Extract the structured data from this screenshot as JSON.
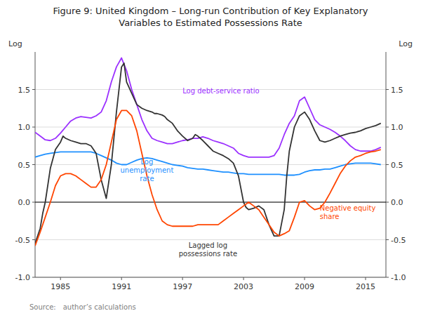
{
  "chart_data": {
    "type": "line",
    "title": "Figure 9: United Kingdom – Long-run Contribution of Key Explanatory\nVariables to Estimated Possessions Rate",
    "source": "Source: author’s calculations",
    "ylabel": "Log",
    "y2label": "Log",
    "xlim": [
      1982.5,
      2017.0
    ],
    "xticks": [
      1985,
      1991,
      1997,
      2003,
      2009,
      2015
    ],
    "ylim": [
      -1.0,
      2.0
    ],
    "yticks": [
      {
        "value": -1.0,
        "label": "-1.0"
      },
      -0.5,
      {
        "value": 0.0,
        "label": "0.0"
      },
      0.5,
      {
        "value": 1.0,
        "label": "1.0"
      },
      1.5
    ],
    "y2lim": [
      -1.0,
      2.0
    ],
    "y2ticks": [
      {
        "value": -1.0,
        "label": "-1.0"
      },
      -0.5,
      {
        "value": 0.0,
        "label": "0.0"
      },
      0.5,
      {
        "value": 1.0,
        "label": "1.0"
      },
      1.5
    ],
    "grid": true,
    "series": [
      {
        "color": "#9B30FF",
        "x": [
          1982.5,
          1983,
          1983.5,
          1984,
          1984.5,
          1985,
          1985.5,
          1986,
          1986.5,
          1987,
          1987.5,
          1988,
          1988.5,
          1989,
          1989.5,
          1990,
          1990.5,
          1991,
          1991.5,
          1992,
          1992.5,
          1993,
          1993.5,
          1994,
          1994.5,
          1995,
          1995.5,
          1996,
          1996.5,
          1997,
          1997.5,
          1998,
          1998.5,
          1999,
          1999.5,
          2000,
          2000.5,
          2001,
          2001.5,
          2002,
          2002.5,
          2003,
          2003.5,
          2004,
          2004.5,
          2005,
          2005.5,
          2006,
          2006.5,
          2007,
          2007.5,
          2008,
          2008.5,
          2009,
          2009.5,
          2010,
          2010.5,
          2011,
          2011.5,
          2012,
          2012.5,
          2013,
          2013.5,
          2014,
          2014.5,
          2015,
          2015.5,
          2016,
          2016.5
        ],
        "values": [
          0.93,
          0.88,
          0.83,
          0.82,
          0.85,
          0.92,
          1.0,
          1.08,
          1.12,
          1.14,
          1.13,
          1.12,
          1.15,
          1.2,
          1.35,
          1.6,
          1.8,
          1.92,
          1.75,
          1.5,
          1.3,
          1.1,
          0.95,
          0.85,
          0.82,
          0.8,
          0.78,
          0.78,
          0.8,
          0.82,
          0.83,
          0.85,
          0.85,
          0.87,
          0.85,
          0.82,
          0.8,
          0.78,
          0.75,
          0.72,
          0.65,
          0.62,
          0.6,
          0.6,
          0.6,
          0.6,
          0.6,
          0.62,
          0.72,
          0.9,
          1.05,
          1.15,
          1.35,
          1.4,
          1.25,
          1.1,
          1.03,
          1.0,
          0.97,
          0.93,
          0.88,
          0.82,
          0.75,
          0.7,
          0.68,
          0.68,
          0.68,
          0.7,
          0.73
        ]
      },
      {
        "color": "#1E90FF",
        "x": [
          1982.5,
          1983,
          1983.5,
          1984,
          1984.5,
          1985,
          1985.5,
          1986,
          1986.5,
          1987,
          1987.5,
          1988,
          1988.5,
          1989,
          1989.5,
          1990,
          1990.5,
          1991,
          1991.5,
          1992,
          1992.5,
          1993,
          1993.5,
          1994,
          1994.5,
          1995,
          1995.5,
          1996,
          1996.5,
          1997,
          1997.5,
          1998,
          1998.5,
          1999,
          1999.5,
          2000,
          2000.5,
          2001,
          2001.5,
          2002,
          2002.5,
          2003,
          2003.5,
          2004,
          2004.5,
          2005,
          2005.5,
          2006,
          2006.5,
          2007,
          2007.5,
          2008,
          2008.5,
          2009,
          2009.5,
          2010,
          2010.5,
          2011,
          2011.5,
          2012,
          2012.5,
          2013,
          2013.5,
          2014,
          2014.5,
          2015,
          2015.5,
          2016,
          2016.5
        ],
        "values": [
          0.6,
          0.62,
          0.64,
          0.65,
          0.66,
          0.67,
          0.67,
          0.67,
          0.67,
          0.67,
          0.67,
          0.67,
          0.65,
          0.62,
          0.59,
          0.56,
          0.52,
          0.5,
          0.5,
          0.53,
          0.56,
          0.58,
          0.59,
          0.58,
          0.56,
          0.54,
          0.52,
          0.5,
          0.49,
          0.48,
          0.46,
          0.45,
          0.44,
          0.44,
          0.43,
          0.42,
          0.41,
          0.4,
          0.4,
          0.39,
          0.38,
          0.38,
          0.37,
          0.37,
          0.37,
          0.37,
          0.37,
          0.37,
          0.37,
          0.36,
          0.36,
          0.36,
          0.37,
          0.4,
          0.42,
          0.43,
          0.43,
          0.44,
          0.44,
          0.46,
          0.48,
          0.5,
          0.51,
          0.52,
          0.52,
          0.52,
          0.52,
          0.51,
          0.5
        ]
      },
      {
        "color": "#333333",
        "x": [
          1982.5,
          1983,
          1983.25,
          1983.5,
          1984,
          1984.5,
          1985,
          1985.25,
          1985.5,
          1986,
          1986.5,
          1987,
          1987.5,
          1988,
          1988.25,
          1988.5,
          1989,
          1989.5,
          1990,
          1990.5,
          1991,
          1991.25,
          1991.5,
          1992,
          1992.5,
          1993,
          1993.5,
          1994,
          1994.25,
          1994.5,
          1995,
          1995.25,
          1995.5,
          1996,
          1996.5,
          1997,
          1997.5,
          1998,
          1998.25,
          1998.5,
          1999,
          1999.5,
          2000,
          2000.5,
          2001,
          2001.5,
          2002,
          2002.5,
          2003,
          2003.25,
          2003.5,
          2004,
          2004.5,
          2005,
          2005.5,
          2006,
          2006.5,
          2007,
          2007.25,
          2007.5,
          2008,
          2008.5,
          2009,
          2009.5,
          2010,
          2010.5,
          2011,
          2011.5,
          2012,
          2012.5,
          2013,
          2013.5,
          2014,
          2014.5,
          2015,
          2015.5,
          2016,
          2016.5
        ],
        "values": [
          -0.55,
          -0.35,
          -0.15,
          0.0,
          0.45,
          0.7,
          0.8,
          0.88,
          0.85,
          0.82,
          0.8,
          0.78,
          0.78,
          0.75,
          0.7,
          0.65,
          0.3,
          0.05,
          0.5,
          1.2,
          1.8,
          1.85,
          1.6,
          1.45,
          1.3,
          1.25,
          1.22,
          1.2,
          1.18,
          1.18,
          1.16,
          1.14,
          1.1,
          1.05,
          0.95,
          0.88,
          0.82,
          0.85,
          0.9,
          0.88,
          0.82,
          0.75,
          0.68,
          0.65,
          0.62,
          0.58,
          0.52,
          0.35,
          0.0,
          -0.07,
          -0.1,
          -0.08,
          -0.05,
          -0.1,
          -0.3,
          -0.45,
          -0.45,
          -0.1,
          0.35,
          0.68,
          1.0,
          1.15,
          1.2,
          1.1,
          0.95,
          0.82,
          0.8,
          0.82,
          0.85,
          0.88,
          0.9,
          0.92,
          0.93,
          0.95,
          0.98,
          1.0,
          1.02,
          1.05
        ]
      },
      {
        "color": "#FF4500",
        "x": [
          1982.5,
          1983,
          1983.5,
          1984,
          1984.5,
          1985,
          1985.5,
          1986,
          1986.5,
          1987,
          1987.5,
          1988,
          1988.5,
          1989,
          1989.5,
          1990,
          1990.5,
          1991,
          1991.5,
          1992,
          1992.5,
          1993,
          1993.5,
          1994,
          1994.5,
          1995,
          1995.5,
          1996,
          1996.5,
          1997,
          1997.5,
          1998,
          1998.5,
          1999,
          1999.5,
          2000,
          2000.5,
          2001,
          2001.5,
          2002,
          2002.5,
          2003,
          2003.5,
          2004,
          2004.5,
          2005,
          2005.5,
          2006,
          2006.5,
          2007,
          2007.5,
          2008,
          2008.5,
          2009,
          2009.5,
          2010,
          2010.5,
          2011,
          2011.5,
          2012,
          2012.5,
          2013,
          2013.5,
          2014,
          2014.5,
          2015,
          2015.5,
          2016,
          2016.5
        ],
        "values": [
          -0.58,
          -0.4,
          -0.2,
          0.0,
          0.22,
          0.35,
          0.38,
          0.38,
          0.35,
          0.3,
          0.25,
          0.2,
          0.2,
          0.3,
          0.5,
          0.8,
          1.1,
          1.22,
          1.22,
          1.15,
          0.95,
          0.65,
          0.35,
          0.1,
          -0.1,
          -0.25,
          -0.3,
          -0.32,
          -0.32,
          -0.32,
          -0.32,
          -0.32,
          -0.3,
          -0.3,
          -0.3,
          -0.3,
          -0.3,
          -0.25,
          -0.2,
          -0.15,
          -0.1,
          -0.05,
          0.0,
          -0.05,
          -0.1,
          -0.2,
          -0.3,
          -0.4,
          -0.45,
          -0.42,
          -0.38,
          -0.2,
          0.0,
          0.02,
          -0.05,
          -0.1,
          -0.08,
          0.0,
          0.12,
          0.25,
          0.38,
          0.48,
          0.55,
          0.6,
          0.62,
          0.65,
          0.67,
          0.68,
          0.7
        ]
      }
    ],
    "annotations": [
      {
        "text": "Log debt-service ratio",
        "x": 1997,
        "y": 1.45,
        "color": "#9B30FF"
      },
      {
        "text": "Log\nunemployment\nrate",
        "x": 1993.5,
        "y": 0.28,
        "color": "#1E90FF"
      },
      {
        "text": "Lagged log\npossessions rate",
        "x": 1999.5,
        "y": -0.72,
        "color": "#333333"
      },
      {
        "text": "Negative equity\nshare",
        "x": 2010.5,
        "y": -0.22,
        "color": "#FF4500"
      }
    ]
  }
}
